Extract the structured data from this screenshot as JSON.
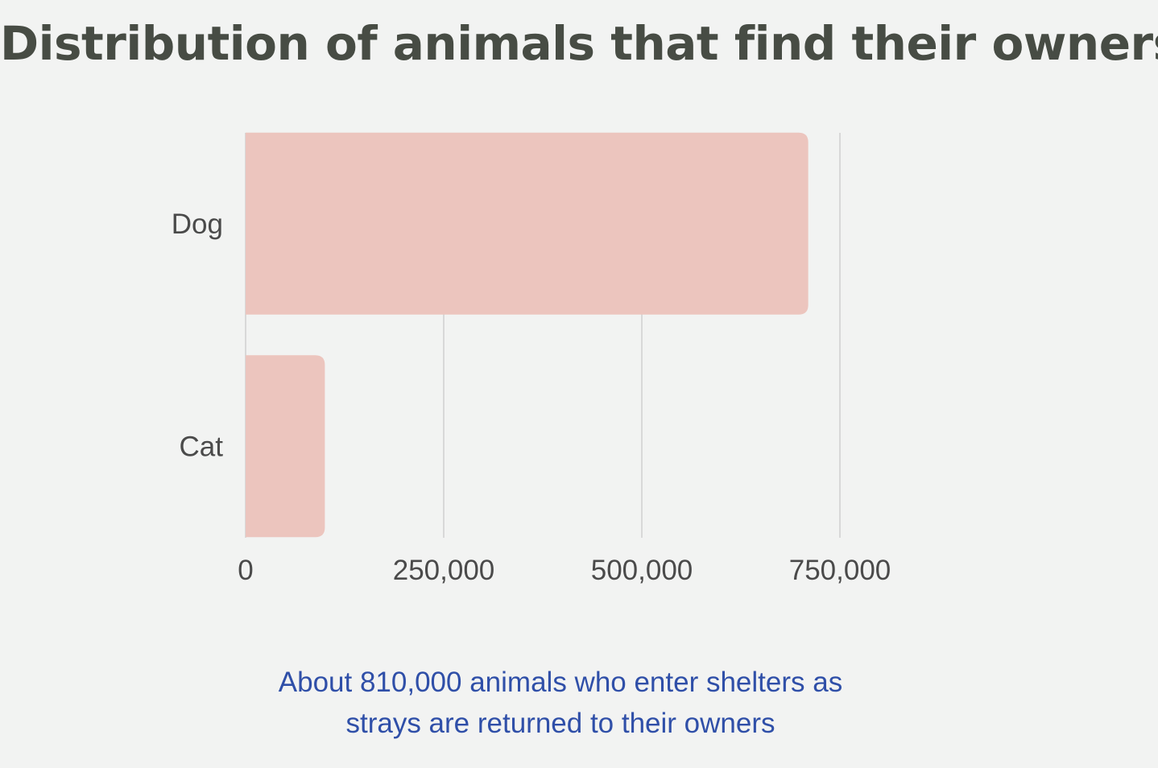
{
  "chart_data": {
    "type": "bar",
    "orientation": "horizontal",
    "title": "Distribution of animals that find their owners",
    "categories": [
      "Dog",
      "Cat"
    ],
    "values": [
      710000,
      100000
    ],
    "xlim": [
      0,
      750000
    ],
    "xticks": [
      0,
      250000,
      500000,
      750000
    ],
    "xtick_labels": [
      "0",
      "250,000",
      "500,000",
      "750,000"
    ],
    "xlabel": "",
    "ylabel": "",
    "grid": true,
    "bar_color": "#ecc5be",
    "grid_color": "#cfcfcf",
    "annotation": [
      "About 810,000 animals who enter shelters as",
      "strays are returned to their owners"
    ]
  },
  "colors": {
    "background": "#f2f3f2",
    "title": "#474c44",
    "caption": "#2f4fa8"
  }
}
